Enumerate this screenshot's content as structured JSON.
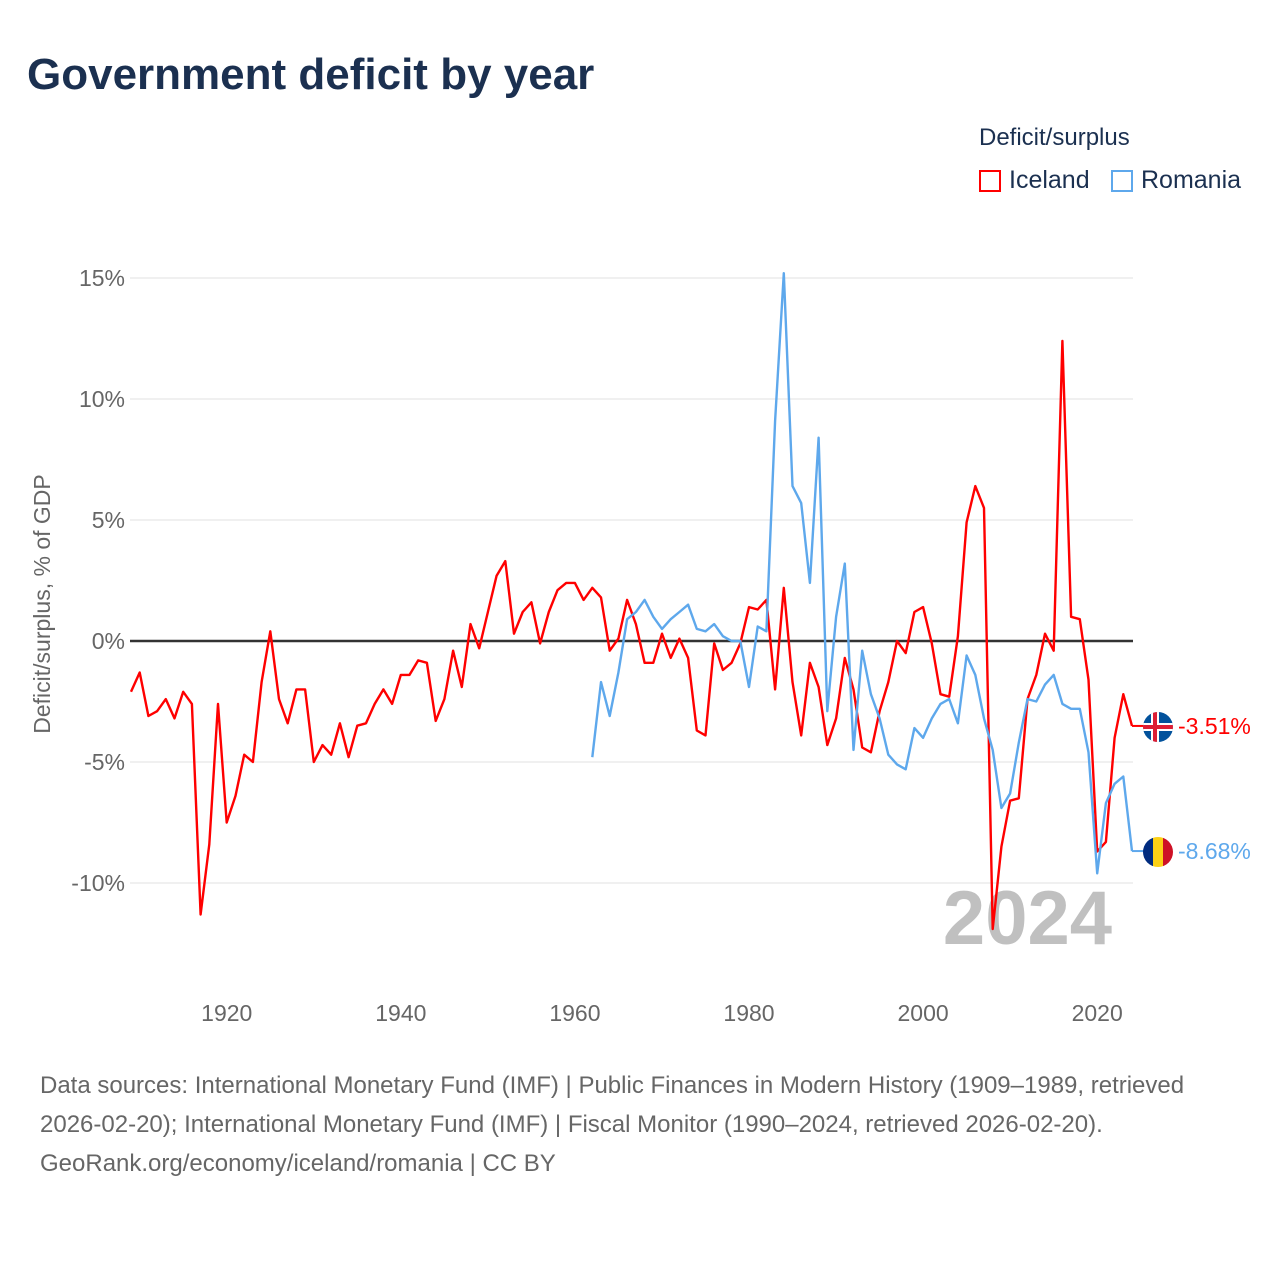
{
  "title": "Government deficit by year",
  "legend": {
    "title": "Deficit/surplus",
    "items": [
      {
        "label": "Iceland",
        "color": "#ff0000"
      },
      {
        "label": "Romania",
        "color": "#5ea8ec"
      }
    ]
  },
  "chart_data": {
    "type": "line",
    "title": "Government deficit by year",
    "xlabel": "",
    "ylabel": "Deficit/surplus, % of GDP",
    "xlim": [
      1909,
      2024
    ],
    "ylim": [
      -13,
      15.5
    ],
    "x_ticks": [
      1920,
      1940,
      1960,
      1980,
      2000,
      2020
    ],
    "y_ticks": [
      {
        "value": 15,
        "label": "15%"
      },
      {
        "value": 10,
        "label": "10%"
      },
      {
        "value": 5,
        "label": "5%"
      },
      {
        "value": 0,
        "label": "0%"
      },
      {
        "value": -5,
        "label": "-5%"
      },
      {
        "value": -10,
        "label": "-10%"
      }
    ],
    "grid": true,
    "legend_position": "top-right",
    "year_watermark": "2024",
    "series": [
      {
        "name": "Iceland",
        "color": "#ff0000",
        "start_year": 1909,
        "end_label": "-3.51%",
        "values": [
          -2.1,
          -1.3,
          -3.1,
          -2.9,
          -2.4,
          -3.2,
          -2.1,
          -2.6,
          -11.3,
          -8.4,
          -2.6,
          -7.5,
          -6.4,
          -4.7,
          -5.0,
          -1.7,
          0.4,
          -2.4,
          -3.4,
          -2.0,
          -2.0,
          -5.0,
          -4.3,
          -4.7,
          -3.4,
          -4.8,
          -3.5,
          -3.4,
          -2.6,
          -2.0,
          -2.6,
          -1.4,
          -1.4,
          -0.8,
          -0.9,
          -3.3,
          -2.4,
          -0.4,
          -1.9,
          0.7,
          -0.3,
          1.2,
          2.7,
          3.3,
          0.3,
          1.2,
          1.6,
          -0.1,
          1.2,
          2.1,
          2.4,
          2.4,
          1.7,
          2.2,
          1.8,
          -0.4,
          0.1,
          1.7,
          0.7,
          -0.9,
          -0.9,
          0.3,
          -0.7,
          0.1,
          -0.7,
          -3.7,
          -3.9,
          -0.1,
          -1.2,
          -0.9,
          -0.1,
          1.4,
          1.3,
          1.7,
          -2.0,
          2.2,
          -1.7,
          -3.9,
          -0.9,
          -1.9,
          -4.3,
          -3.2,
          -0.7,
          -2.0,
          -4.4,
          -4.6,
          -2.9,
          -1.7,
          0.0,
          -0.5,
          1.2,
          1.4,
          -0.1,
          -2.2,
          -2.3,
          0.2,
          4.9,
          6.4,
          5.5,
          -11.9,
          -8.5,
          -6.6,
          -6.5,
          -2.4,
          -1.4,
          0.3,
          -0.4,
          12.4,
          1.0,
          0.9,
          -1.6,
          -8.7,
          -8.3,
          -4.0,
          -2.2,
          -3.51
        ]
      },
      {
        "name": "Romania",
        "color": "#5ea8ec",
        "start_year": 1962,
        "end_label": "-8.68%",
        "values": [
          -4.8,
          -1.7,
          -3.1,
          -1.3,
          0.9,
          1.2,
          1.7,
          1.0,
          0.5,
          0.9,
          1.2,
          1.5,
          0.5,
          0.4,
          0.7,
          0.2,
          0.0,
          0.0,
          -1.9,
          0.6,
          0.4,
          9.1,
          15.2,
          6.4,
          5.7,
          2.4,
          8.4,
          -2.9,
          1.0,
          3.2,
          -4.5,
          -0.4,
          -2.2,
          -3.2,
          -4.7,
          -5.1,
          -5.3,
          -3.6,
          -4.0,
          -3.2,
          -2.6,
          -2.4,
          -3.4,
          -0.6,
          -1.4,
          -3.2,
          -4.5,
          -6.9,
          -6.3,
          -4.2,
          -2.4,
          -2.5,
          -1.8,
          -1.4,
          -2.6,
          -2.8,
          -2.8,
          -4.6,
          -9.6,
          -6.7,
          -5.9,
          -5.6,
          -8.68
        ]
      }
    ]
  },
  "footer": {
    "sources": "Data sources: International Monetary Fund (IMF) | Public Finances in Modern History (1909–1989, retrieved 2026-02-20); International Monetary Fund (IMF) | Fiscal Monitor (1990–2024, retrieved 2026-02-20).",
    "credit": "GeoRank.org/economy/iceland/romania | CC BY"
  }
}
